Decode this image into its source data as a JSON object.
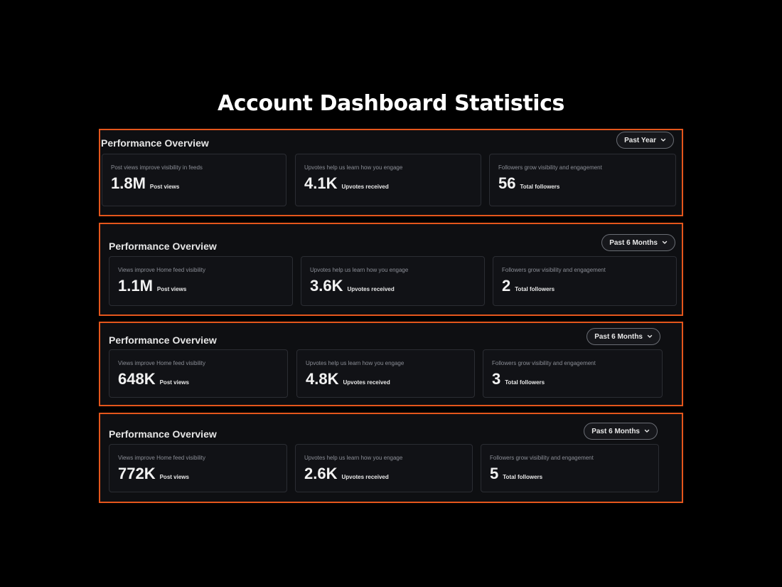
{
  "page": {
    "title": "Account Dashboard Statistics"
  },
  "colors": {
    "accent_border": "#e4561c",
    "background": "#000000",
    "panel_background": "#0e0f12",
    "card_border": "#2b2d33"
  },
  "panels": [
    {
      "title": "Performance Overview",
      "range_label": "Past Year",
      "range_icon": "chevron-down-icon",
      "cards": [
        {
          "caption": "Post views improve visibility in feeds",
          "value": "1.8M",
          "unit": "Post views"
        },
        {
          "caption": "Upvotes help us learn how you engage",
          "value": "4.1K",
          "unit": "Upvotes received"
        },
        {
          "caption": "Followers grow visibility and engagement",
          "value": "56",
          "unit": "Total followers"
        }
      ]
    },
    {
      "title": "Performance Overview",
      "range_label": "Past 6 Months",
      "range_icon": "chevron-down-icon",
      "cards": [
        {
          "caption": "Views improve Home feed visibility",
          "value": "1.1M",
          "unit": "Post views"
        },
        {
          "caption": "Upvotes help us learn how you engage",
          "value": "3.6K",
          "unit": "Upvotes received"
        },
        {
          "caption": "Followers grow visibility and engagement",
          "value": "2",
          "unit": "Total followers"
        }
      ]
    },
    {
      "title": "Performance Overview",
      "range_label": "Past 6 Months",
      "range_icon": "chevron-down-icon",
      "cards": [
        {
          "caption": "Views improve Home feed visibility",
          "value": "648K",
          "unit": "Post views"
        },
        {
          "caption": "Upvotes help us learn how you engage",
          "value": "4.8K",
          "unit": "Upvotes received"
        },
        {
          "caption": "Followers grow visibility and engagement",
          "value": "3",
          "unit": "Total followers"
        }
      ]
    },
    {
      "title": "Performance Overview",
      "range_label": "Past 6 Months",
      "range_icon": "chevron-down-icon",
      "cards": [
        {
          "caption": "Views improve Home feed visibility",
          "value": "772K",
          "unit": "Post views"
        },
        {
          "caption": "Upvotes help us learn how you engage",
          "value": "2.6K",
          "unit": "Upvotes received"
        },
        {
          "caption": "Followers grow visibility and engagement",
          "value": "5",
          "unit": "Total followers"
        }
      ]
    }
  ]
}
